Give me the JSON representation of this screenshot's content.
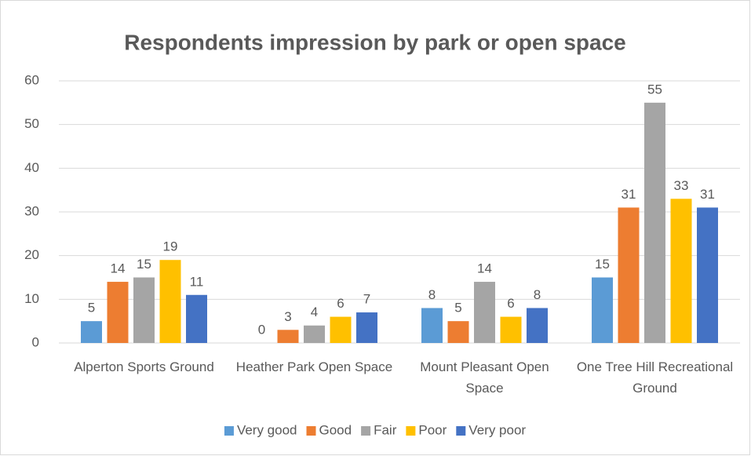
{
  "chart_data": {
    "type": "bar",
    "title": "Respondents impression by park or open space",
    "categories": [
      "Alperton Sports Ground",
      "Heather Park Open Space",
      "Mount Pleasant Open Space",
      "One Tree Hill Recreational Ground"
    ],
    "series": [
      {
        "name": "Very good",
        "color": "#5b9bd5",
        "values": [
          5,
          0,
          8,
          15
        ]
      },
      {
        "name": "Good",
        "color": "#ed7d31",
        "values": [
          14,
          3,
          5,
          31
        ]
      },
      {
        "name": "Fair",
        "color": "#a5a5a5",
        "values": [
          15,
          4,
          14,
          55
        ]
      },
      {
        "name": "Poor",
        "color": "#ffc000",
        "values": [
          19,
          6,
          6,
          33
        ]
      },
      {
        "name": "Very poor",
        "color": "#4472c4",
        "values": [
          11,
          7,
          8,
          31
        ]
      }
    ],
    "ylim": [
      0,
      60
    ],
    "yticks": [
      0,
      10,
      20,
      30,
      40,
      50,
      60
    ],
    "grid": true,
    "legend": "bottom"
  }
}
